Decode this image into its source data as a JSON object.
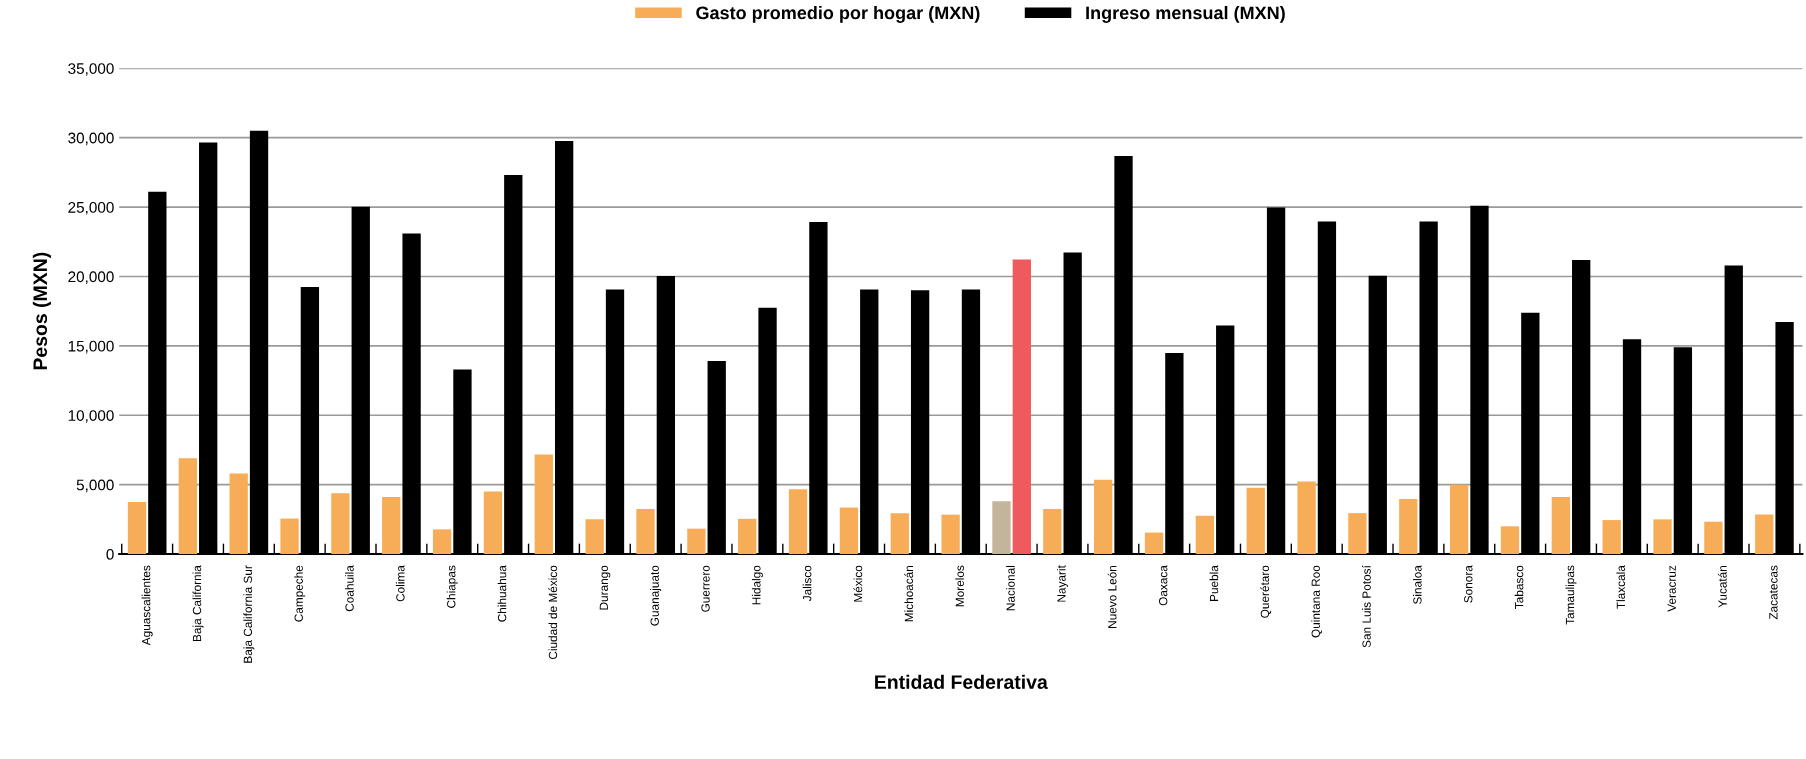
{
  "chart_data": {
    "type": "bar",
    "xlabel": "Entidad Federativa",
    "ylabel": "Pesos (MXN)",
    "categories": [
      "Aguascalientes",
      "Baja California",
      "Baja California Sur",
      "Campeche",
      "Coahuila",
      "Colima",
      "Chiapas",
      "Chihuahua",
      "Ciudad de México",
      "Durango",
      "Guanajuato",
      "Guerrero",
      "Hidalgo",
      "Jalisco",
      "México",
      "Michoacán",
      "Morelos",
      "Nacional",
      "Nayarit",
      "Nuevo León",
      "Oaxaca",
      "Puebla",
      "Querétaro",
      "Quintana Roo",
      "San Luis Potosí",
      "Sinaloa",
      "Sonora",
      "Tabasco",
      "Tamaulipas",
      "Tlaxcala",
      "Veracruz",
      "Yucatán",
      "Zacatecas"
    ],
    "series": [
      {
        "name": "Gasto promedio por hogar (MXN)",
        "color": "#f7ad57",
        "colors": [
          "#f7ad57",
          "#f7ad57",
          "#f7ad57",
          "#f7ad57",
          "#f7ad57",
          "#f7ad57",
          "#f7ad57",
          "#f7ad57",
          "#f7ad57",
          "#f7ad57",
          "#f7ad57",
          "#f7ad57",
          "#f7ad57",
          "#f7ad57",
          "#f7ad57",
          "#f7ad57",
          "#f7ad57",
          "#c2b59b",
          "#f7ad57",
          "#f7ad57",
          "#f7ad57",
          "#f7ad57",
          "#f7ad57",
          "#f7ad57",
          "#f7ad57",
          "#f7ad57",
          "#f7ad57",
          "#f7ad57",
          "#f7ad57",
          "#f7ad57",
          "#f7ad57",
          "#f7ad57",
          "#f7ad57"
        ],
        "values": [
          3750,
          6900,
          5800,
          2560,
          4390,
          4110,
          1780,
          4510,
          7180,
          2510,
          3250,
          1830,
          2540,
          4670,
          3350,
          2940,
          2840,
          3800,
          3250,
          5350,
          1550,
          2760,
          4780,
          5220,
          2950,
          3960,
          5000,
          2000,
          4110,
          2450,
          2500,
          2330,
          2850
        ]
      },
      {
        "name": "Ingreso mensual (MXN)",
        "color": "#000000",
        "colors": [
          "#000000",
          "#000000",
          "#000000",
          "#000000",
          "#000000",
          "#000000",
          "#000000",
          "#000000",
          "#000000",
          "#000000",
          "#000000",
          "#000000",
          "#000000",
          "#000000",
          "#000000",
          "#000000",
          "#000000",
          "#ee5a5e",
          "#000000",
          "#000000",
          "#000000",
          "#000000",
          "#000000",
          "#000000",
          "#000000",
          "#000000",
          "#000000",
          "#000000",
          "#000000",
          "#000000",
          "#000000",
          "#000000",
          "#000000"
        ],
        "values": [
          26100,
          29650,
          30500,
          19250,
          25030,
          23100,
          13290,
          27310,
          29770,
          19070,
          20040,
          13920,
          17750,
          23920,
          19070,
          19000,
          19070,
          21230,
          21730,
          28680,
          14480,
          16460,
          24980,
          23960,
          20050,
          23960,
          25100,
          17380,
          21190,
          15470,
          14900,
          20790,
          16730
        ]
      }
    ],
    "ylim": [
      0,
      35000
    ],
    "yticks": [
      {
        "value": 0,
        "label": "0"
      },
      {
        "value": 5000,
        "label": "5,000"
      },
      {
        "value": 10000,
        "label": "10,000"
      },
      {
        "value": 15000,
        "label": "15,000"
      },
      {
        "value": 20000,
        "label": "20,000"
      },
      {
        "value": 25000,
        "label": "25,000"
      },
      {
        "value": 30000,
        "label": "30,000"
      },
      {
        "value": 35000,
        "label": "35,000"
      }
    ],
    "grid": "y",
    "legend": "top"
  }
}
